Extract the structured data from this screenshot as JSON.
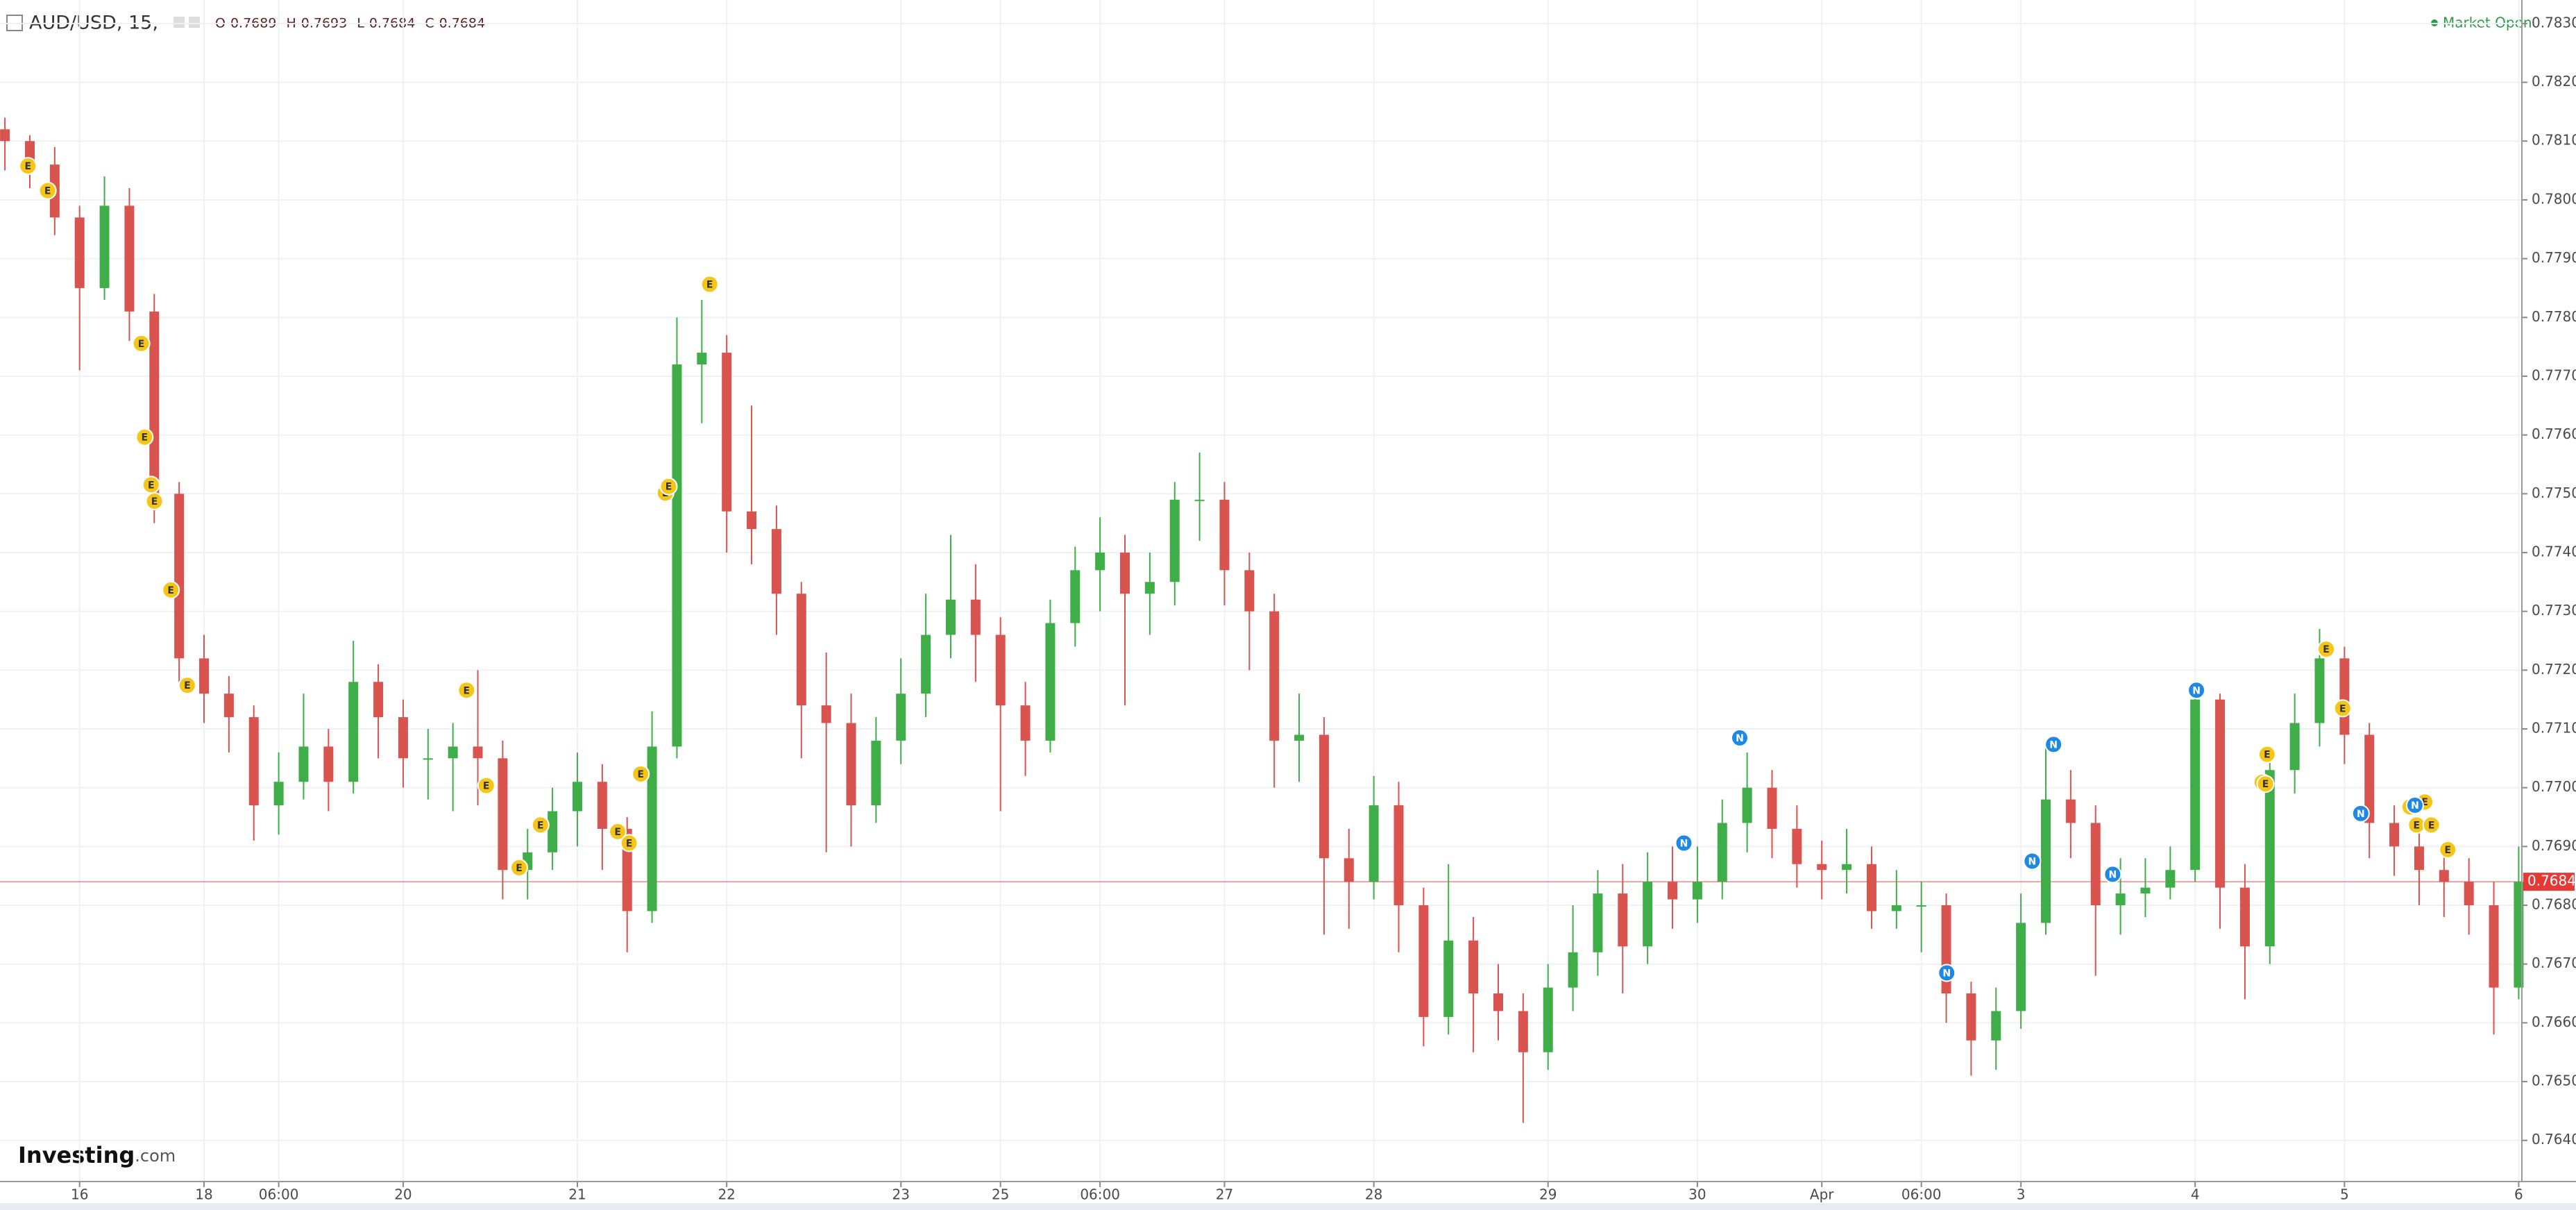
{
  "header": {
    "symbol": "AUD/USD, 15,",
    "ohlc": [
      {
        "label": "O",
        "value": "0.7689"
      },
      {
        "label": "H",
        "value": "0.7693"
      },
      {
        "label": "L",
        "value": "0.7684"
      },
      {
        "label": "C",
        "value": "0.7684"
      }
    ],
    "status": "Market Open"
  },
  "logo": {
    "brand": "Investing",
    "suffix": ".com"
  },
  "chart_data": {
    "type": "candlestick",
    "categories": [
      null,
      null,
      null,
      "16",
      null,
      null,
      null,
      null,
      "18",
      null,
      null,
      "06:00",
      null,
      null,
      null,
      null,
      "20",
      null,
      null,
      null,
      null,
      null,
      null,
      "21",
      null,
      null,
      null,
      null,
      null,
      "22",
      null,
      null,
      null,
      null,
      null,
      null,
      "23",
      null,
      null,
      null,
      "25",
      null,
      null,
      null,
      "06:00",
      null,
      null,
      null,
      null,
      "27",
      null,
      null,
      null,
      null,
      null,
      "28",
      null,
      null,
      null,
      null,
      null,
      null,
      "29",
      null,
      null,
      null,
      null,
      null,
      "30",
      null,
      null,
      null,
      null,
      "Apr",
      null,
      null,
      null,
      "06:00",
      null,
      null,
      null,
      "3",
      null,
      null,
      null,
      null,
      null,
      null,
      "4",
      null,
      null,
      null,
      null,
      null,
      "5",
      null,
      null,
      null,
      null,
      null,
      null,
      "6"
    ],
    "open": [
      0.7812,
      0.781,
      0.7806,
      0.7797,
      0.7785,
      0.7799,
      0.7781,
      0.775,
      0.7722,
      0.7716,
      0.7712,
      0.7697,
      0.7701,
      0.7707,
      0.7701,
      0.7718,
      0.7712,
      0.7705,
      0.7705,
      0.7707,
      0.7705,
      0.7686,
      0.7689,
      0.7696,
      0.7701,
      0.7693,
      0.7679,
      0.7707,
      0.7772,
      0.7774,
      0.7747,
      0.7744,
      0.7733,
      0.7714,
      0.7711,
      0.7697,
      0.7708,
      0.7716,
      0.7726,
      0.7732,
      0.7726,
      0.7714,
      0.7708,
      0.7728,
      0.7737,
      0.774,
      0.7733,
      0.7735,
      0.7749,
      0.7749,
      0.7737,
      0.773,
      0.7708,
      0.7709,
      0.7688,
      0.7684,
      0.7697,
      0.768,
      0.7661,
      0.7674,
      0.7665,
      0.7662,
      0.7655,
      0.7666,
      0.7672,
      0.7682,
      0.7673,
      0.7684,
      0.7681,
      0.7684,
      0.7694,
      0.77,
      0.7693,
      0.7687,
      0.7686,
      0.7687,
      0.7679,
      0.768,
      0.768,
      0.7665,
      0.7657,
      0.7662,
      0.7677,
      0.7698,
      0.7694,
      0.768,
      0.7682,
      0.7683,
      0.7686,
      0.7715,
      0.7683,
      0.7673,
      0.7703,
      0.7711,
      0.7722,
      0.7709,
      0.7694,
      0.769,
      0.7686,
      0.7684,
      0.768,
      0.7666
    ],
    "high": [
      0.7814,
      0.7811,
      0.7809,
      0.7799,
      0.7804,
      0.7802,
      0.7784,
      0.7752,
      0.7726,
      0.7719,
      0.7714,
      0.7706,
      0.7716,
      0.771,
      0.7725,
      0.7721,
      0.7715,
      0.771,
      0.7711,
      0.772,
      0.7708,
      0.7693,
      0.77,
      0.7706,
      0.7704,
      0.7695,
      0.7713,
      0.778,
      0.7783,
      0.7777,
      0.7765,
      0.7748,
      0.7735,
      0.7723,
      0.7716,
      0.7712,
      0.7722,
      0.7733,
      0.7743,
      0.7738,
      0.7729,
      0.7718,
      0.7732,
      0.7741,
      0.7746,
      0.7743,
      0.774,
      0.7752,
      0.7757,
      0.7752,
      0.774,
      0.7733,
      0.7716,
      0.7712,
      0.7693,
      0.7702,
      0.7701,
      0.7683,
      0.7687,
      0.7678,
      0.767,
      0.7665,
      0.767,
      0.768,
      0.7686,
      0.7687,
      0.7689,
      0.769,
      0.769,
      0.7698,
      0.7706,
      0.7703,
      0.7697,
      0.7691,
      0.7693,
      0.769,
      0.7686,
      0.7684,
      0.7682,
      0.7667,
      0.7666,
      0.7682,
      0.7707,
      0.7703,
      0.7697,
      0.7688,
      0.7688,
      0.769,
      0.7717,
      0.7716,
      0.7687,
      0.7706,
      0.7716,
      0.7727,
      0.7724,
      0.7711,
      0.7697,
      0.7694,
      0.7689,
      0.7688,
      0.7684,
      0.769
    ],
    "low": [
      0.7805,
      0.7802,
      0.7794,
      0.7771,
      0.7783,
      0.7776,
      0.7745,
      0.7718,
      0.7711,
      0.7706,
      0.7691,
      0.7692,
      0.7698,
      0.7696,
      0.7699,
      0.7705,
      0.77,
      0.7698,
      0.7696,
      0.7697,
      0.7681,
      0.7681,
      0.7686,
      0.769,
      0.7686,
      0.7672,
      0.7677,
      0.7705,
      0.7762,
      0.774,
      0.7738,
      0.7726,
      0.7705,
      0.7689,
      0.769,
      0.7694,
      0.7704,
      0.7712,
      0.7722,
      0.7718,
      0.7696,
      0.7702,
      0.7706,
      0.7724,
      0.773,
      0.7714,
      0.7726,
      0.7731,
      0.7742,
      0.7731,
      0.772,
      0.77,
      0.7701,
      0.7675,
      0.7676,
      0.7681,
      0.7672,
      0.7656,
      0.7658,
      0.7655,
      0.7657,
      0.7643,
      0.7652,
      0.7662,
      0.7668,
      0.7665,
      0.767,
      0.7676,
      0.7677,
      0.7681,
      0.7689,
      0.7688,
      0.7683,
      0.7681,
      0.7682,
      0.7676,
      0.7676,
      0.7672,
      0.766,
      0.7651,
      0.7652,
      0.7659,
      0.7675,
      0.7688,
      0.7668,
      0.7675,
      0.7678,
      0.7681,
      0.7684,
      0.7676,
      0.7664,
      0.767,
      0.7699,
      0.7707,
      0.7704,
      0.7688,
      0.7685,
      0.768,
      0.7678,
      0.7675,
      0.7658,
      0.7664
    ],
    "close": [
      0.781,
      0.7806,
      0.7797,
      0.7785,
      0.7799,
      0.7781,
      0.775,
      0.7722,
      0.7716,
      0.7712,
      0.7697,
      0.7701,
      0.7707,
      0.7701,
      0.7718,
      0.7712,
      0.7705,
      0.7705,
      0.7707,
      0.7705,
      0.7686,
      0.7689,
      0.7696,
      0.7701,
      0.7693,
      0.7679,
      0.7707,
      0.7772,
      0.7774,
      0.7747,
      0.7744,
      0.7733,
      0.7714,
      0.7711,
      0.7697,
      0.7708,
      0.7716,
      0.7726,
      0.7732,
      0.7726,
      0.7714,
      0.7708,
      0.7728,
      0.7737,
      0.774,
      0.7733,
      0.7735,
      0.7749,
      0.7749,
      0.7737,
      0.773,
      0.7708,
      0.7709,
      0.7688,
      0.7684,
      0.7697,
      0.768,
      0.7661,
      0.7674,
      0.7665,
      0.7662,
      0.7655,
      0.7666,
      0.7672,
      0.7682,
      0.7673,
      0.7684,
      0.7681,
      0.7684,
      0.7694,
      0.77,
      0.7693,
      0.7687,
      0.7686,
      0.7687,
      0.7679,
      0.768,
      0.768,
      0.7665,
      0.7657,
      0.7662,
      0.7677,
      0.7698,
      0.7694,
      0.768,
      0.7682,
      0.7683,
      0.7686,
      0.7715,
      0.7683,
      0.7673,
      0.7703,
      0.7711,
      0.7722,
      0.7709,
      0.7694,
      0.769,
      0.7686,
      0.7684,
      0.768,
      0.7666,
      0.7684
    ],
    "up_color": "#3fae49",
    "down_color": "#d9534f",
    "ylim": [
      0.7633,
      0.7834
    ],
    "yticks": [
      {
        "value": 0.764,
        "label": "0.7640"
      },
      {
        "value": 0.765,
        "label": "0.7650"
      },
      {
        "value": 0.766,
        "label": "0.7660"
      },
      {
        "value": 0.767,
        "label": "0.7670"
      },
      {
        "value": 0.768,
        "label": "0.7680"
      },
      {
        "value": 0.769,
        "label": "0.7690"
      },
      {
        "value": 0.77,
        "label": "0.7700"
      },
      {
        "value": 0.771,
        "label": "0.7710"
      },
      {
        "value": 0.772,
        "label": "0.7720"
      },
      {
        "value": 0.773,
        "label": "0.7730"
      },
      {
        "value": 0.774,
        "label": "0.7740"
      },
      {
        "value": 0.775,
        "label": "0.7750"
      },
      {
        "value": 0.776,
        "label": "0.7760"
      },
      {
        "value": 0.777,
        "label": "0.7770"
      },
      {
        "value": 0.778,
        "label": "0.7780"
      },
      {
        "value": 0.779,
        "label": "0.7790"
      },
      {
        "value": 0.78,
        "label": "0.7800"
      },
      {
        "value": 0.781,
        "label": "0.7810"
      },
      {
        "value": 0.782,
        "label": "0.7820"
      },
      {
        "value": 0.783,
        "label": "0.7830"
      }
    ],
    "grid": true,
    "last_price": {
      "value": 0.7684,
      "label": "0.7684",
      "color": "#e53935"
    },
    "event_labels": [
      "E",
      "N"
    ]
  }
}
